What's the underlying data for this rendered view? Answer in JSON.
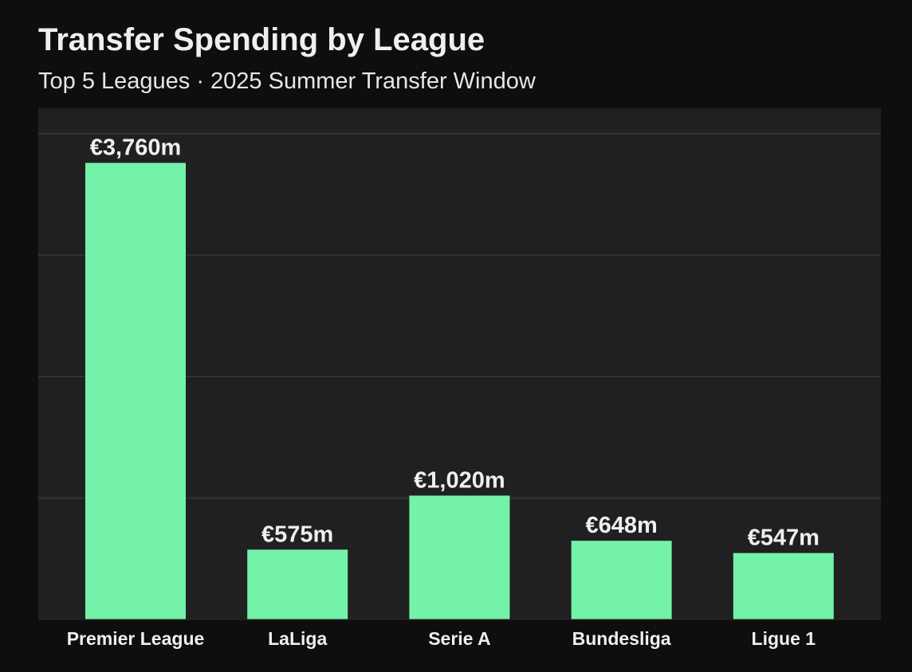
{
  "chart_data": {
    "type": "bar",
    "title": "Transfer Spending by League",
    "subtitle": "Top 5 Leagues · 2025 Summer Transfer Window",
    "xlabel": "",
    "ylabel": "",
    "categories": [
      "Premier League",
      "LaLiga",
      "Serie A",
      "Bundesliga",
      "Ligue 1"
    ],
    "values": [
      3760,
      575,
      1020,
      648,
      547
    ],
    "value_labels": [
      "€3,760m",
      "€575m",
      "€1,020m",
      "€648m",
      "€547m"
    ],
    "unit": "€m",
    "ylim": [
      0,
      4000
    ],
    "grid": true,
    "legend": "none"
  },
  "colors": {
    "page_background": "#0e0e0e",
    "plot_background": "#202020",
    "gridline": "#333333",
    "bar": "#74f2aa",
    "text": "#efefef"
  }
}
